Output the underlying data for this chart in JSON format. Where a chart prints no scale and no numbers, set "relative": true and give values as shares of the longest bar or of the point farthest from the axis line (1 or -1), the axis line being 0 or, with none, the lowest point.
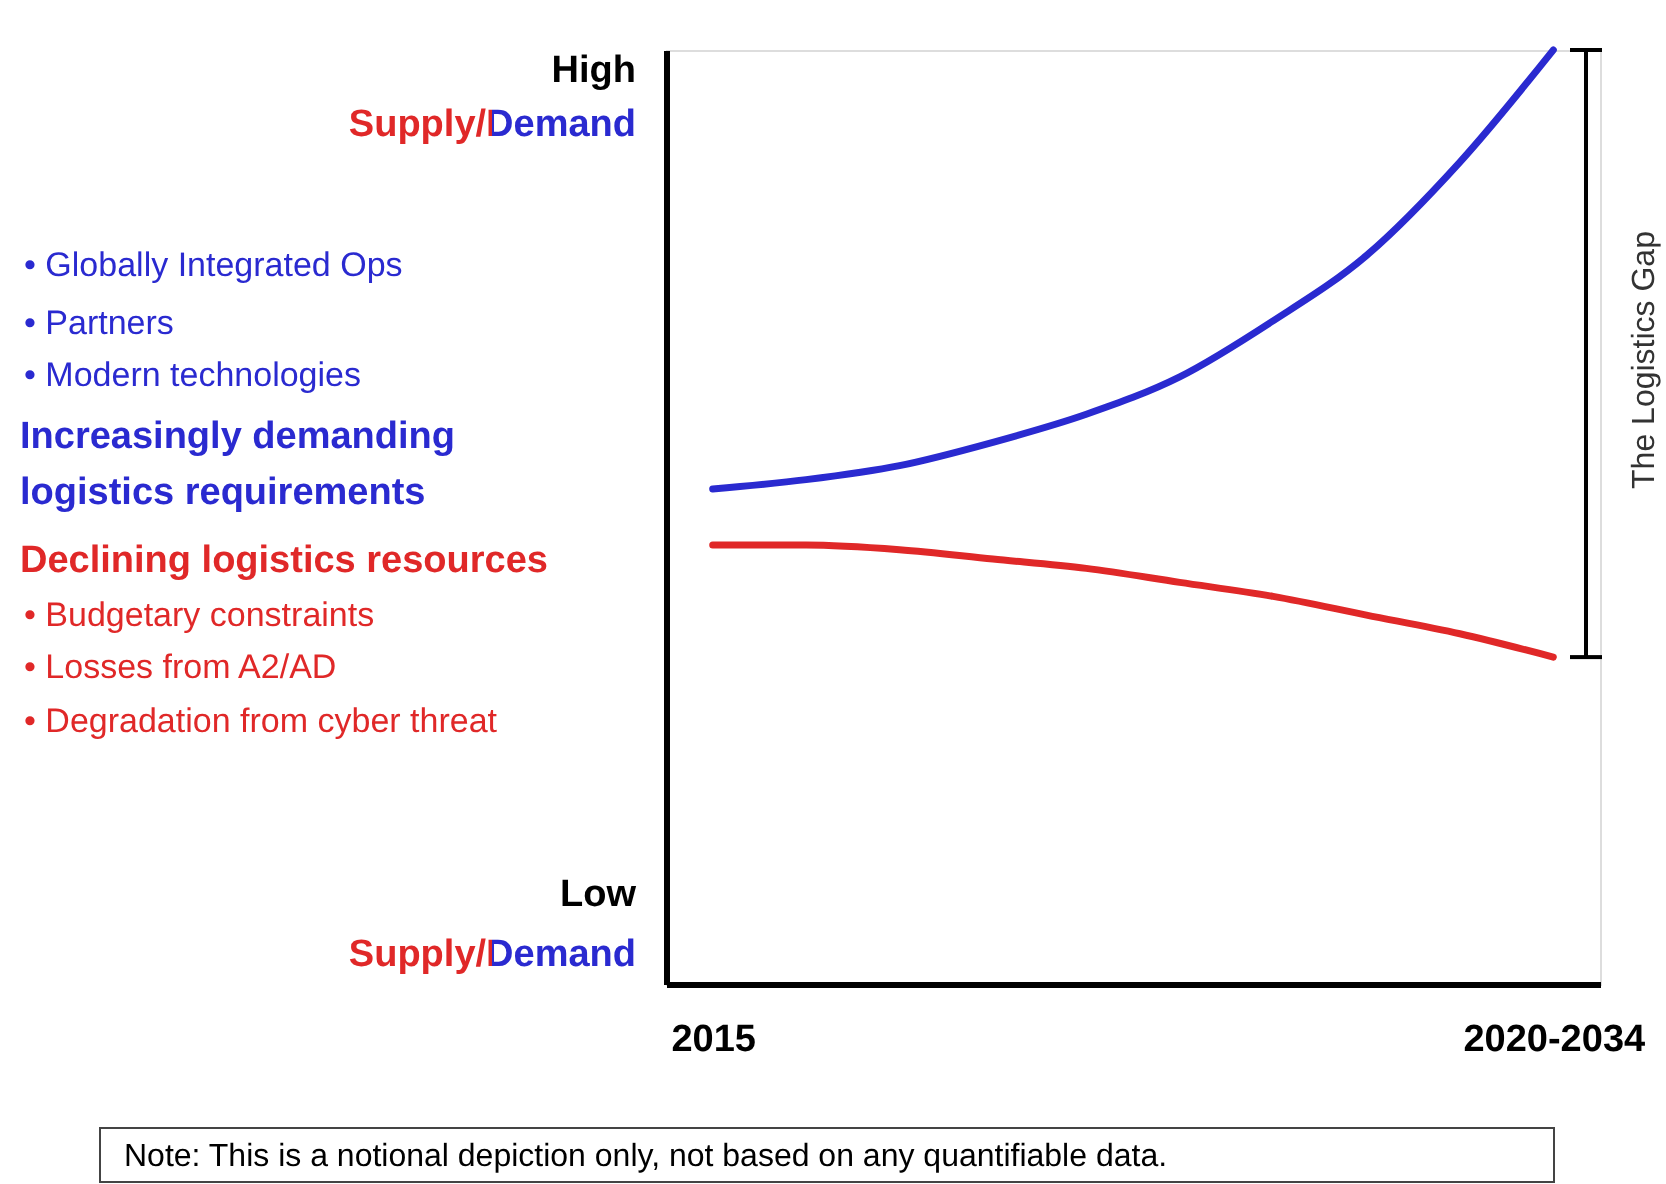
{
  "chart_data": {
    "type": "line",
    "relative": true,
    "grid": false,
    "legend": false,
    "marker": "none",
    "line_style": "solid",
    "categories": [
      "2015",
      null,
      null,
      null,
      null,
      null,
      null,
      null,
      null,
      "2020-2034"
    ],
    "series": [
      {
        "color": "#2a2ad0",
        "values": [
          0.53,
          0.54,
          0.555,
          0.58,
          0.61,
          0.65,
          0.71,
          0.78,
          0.88,
          1.0
        ]
      },
      {
        "color": "#e02828",
        "values": [
          0.47,
          0.47,
          0.465,
          0.455,
          0.445,
          0.43,
          0.415,
          0.395,
          0.375,
          0.35
        ]
      }
    ],
    "annotations": [
      "High",
      "Supply/Demand",
      "•   Globally Integrated Ops",
      "•   Partners",
      "•   Modern technologies",
      "Increasingly demanding",
      "logistics requirements",
      "Declining logistics resources",
      "•   Budgetary constraints",
      "•   Losses from A2/AD",
      "•   Degradation from cyber threat",
      "Low",
      "Supply/Demand",
      "The Logistics Gap",
      "Note:  This is a notional depiction only, not based on any quantifiable data."
    ]
  }
}
